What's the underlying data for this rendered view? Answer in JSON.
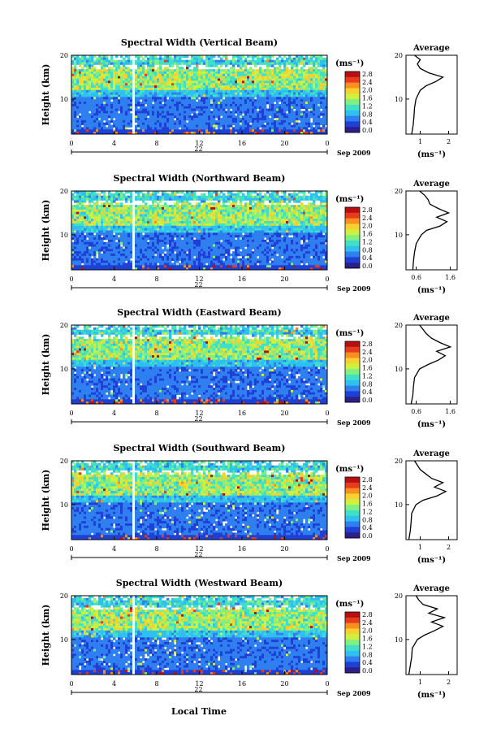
{
  "figure": {
    "xlabel": "Local Time",
    "date_label": "Sep 2009",
    "date_day": "22",
    "ylabel": "Height (km)",
    "unit_label": "(ms⁻¹)",
    "xticks": [
      "0",
      "4",
      "8",
      "12",
      "16",
      "20",
      "0"
    ],
    "yticks": [
      "20",
      "10"
    ],
    "colorbar_ticks": [
      "2.8",
      "2.4",
      "2.0",
      "1.6",
      "1.2",
      "0.8",
      "0.4",
      "0.0"
    ],
    "colorbar_colors": [
      "#2b1f8a",
      "#1f40d6",
      "#2f7ff0",
      "#2fc0f0",
      "#40e0c8",
      "#80f080",
      "#d0f040",
      "#f8d030",
      "#f89020",
      "#e83a1c",
      "#b81010"
    ],
    "profile_title": "Average",
    "profile_xlabel": "(ms⁻¹)",
    "profile_yticks": [
      "20",
      "10"
    ]
  },
  "chart_data": [
    {
      "type": "heatmap",
      "title": "Spectral Width (Vertical Beam)",
      "xlabel": "Local Time",
      "ylabel": "Height (km)",
      "x_range": [
        0,
        24
      ],
      "y_range": [
        2,
        20
      ],
      "color_range": [
        0.0,
        3.0
      ],
      "color_unit": "ms⁻¹",
      "profile": {
        "title": "Average",
        "xlabel": "(ms⁻¹)",
        "xticks": [
          "1",
          "2"
        ],
        "xlim": [
          0.5,
          2.3
        ],
        "heights": [
          2,
          4,
          6,
          8,
          10,
          12,
          13,
          14,
          15,
          16,
          17,
          18,
          19,
          20
        ],
        "values": [
          0.7,
          0.75,
          0.78,
          0.8,
          0.85,
          1.0,
          1.2,
          1.55,
          1.8,
          1.3,
          1.0,
          0.9,
          1.0,
          0.8
        ]
      }
    },
    {
      "type": "heatmap",
      "title": "Spectral Width (Northward Beam)",
      "xlabel": "Local Time",
      "ylabel": "Height (km)",
      "x_range": [
        0,
        24
      ],
      "y_range": [
        2,
        20
      ],
      "color_range": [
        0.0,
        3.0
      ],
      "color_unit": "ms⁻¹",
      "profile": {
        "title": "Average",
        "xlabel": "(ms⁻¹)",
        "xticks": [
          "0.6",
          "1.6"
        ],
        "xlim": [
          0.3,
          1.8
        ],
        "heights": [
          2,
          4,
          6,
          8,
          10,
          11,
          12,
          13,
          14,
          15,
          16,
          17,
          18,
          19,
          20
        ],
        "values": [
          0.5,
          0.52,
          0.55,
          0.6,
          0.75,
          0.9,
          1.3,
          1.5,
          1.2,
          1.55,
          1.25,
          1.0,
          0.95,
          0.85,
          0.7
        ]
      }
    },
    {
      "type": "heatmap",
      "title": "Spectral Width (Eastward Beam)",
      "xlabel": "Local Time",
      "ylabel": "Height (km)",
      "x_range": [
        0,
        24
      ],
      "y_range": [
        2,
        20
      ],
      "color_range": [
        0.0,
        3.0
      ],
      "color_unit": "ms⁻¹",
      "profile": {
        "title": "Average",
        "xlabel": "(ms⁻¹)",
        "xticks": [
          "0.6",
          "1.6"
        ],
        "xlim": [
          0.3,
          1.8
        ],
        "heights": [
          2,
          4,
          6,
          8,
          10,
          11,
          12,
          13,
          14,
          15,
          16,
          17,
          18,
          19,
          20
        ],
        "values": [
          0.45,
          0.5,
          0.52,
          0.55,
          0.7,
          0.95,
          1.25,
          1.45,
          1.2,
          1.6,
          1.3,
          1.05,
          0.9,
          0.8,
          0.7
        ]
      }
    },
    {
      "type": "heatmap",
      "title": "Spectral Width (Southward Beam)",
      "xlabel": "Local Time",
      "ylabel": "Height (km)",
      "x_range": [
        0,
        24
      ],
      "y_range": [
        2,
        20
      ],
      "color_range": [
        0.0,
        3.0
      ],
      "color_unit": "ms⁻¹",
      "profile": {
        "title": "Average",
        "xlabel": "(ms⁻¹)",
        "xticks": [
          "1",
          "2"
        ],
        "xlim": [
          0.5,
          2.3
        ],
        "heights": [
          2,
          4,
          6,
          8,
          10,
          11,
          12,
          13,
          14,
          15,
          16,
          17,
          18,
          19,
          20
        ],
        "values": [
          0.6,
          0.65,
          0.68,
          0.7,
          0.85,
          1.1,
          1.6,
          1.9,
          1.5,
          1.8,
          1.4,
          1.2,
          1.0,
          0.9,
          0.8
        ]
      }
    },
    {
      "type": "heatmap",
      "title": "Spectral Width (Westward Beam)",
      "xlabel": "Local Time",
      "ylabel": "Height (km)",
      "x_range": [
        0,
        24
      ],
      "y_range": [
        2,
        20
      ],
      "color_range": [
        0.0,
        3.0
      ],
      "color_unit": "ms⁻¹",
      "profile": {
        "title": "Average",
        "xlabel": "(ms⁻¹)",
        "xticks": [
          "1",
          "2"
        ],
        "xlim": [
          0.5,
          2.3
        ],
        "heights": [
          2,
          4,
          6,
          8,
          10,
          11,
          12,
          13,
          14,
          15,
          16,
          17,
          18,
          19,
          20
        ],
        "values": [
          0.6,
          0.65,
          0.7,
          0.72,
          0.9,
          1.15,
          1.5,
          1.8,
          1.4,
          1.85,
          1.3,
          1.6,
          1.1,
          0.95,
          0.85
        ]
      }
    }
  ]
}
